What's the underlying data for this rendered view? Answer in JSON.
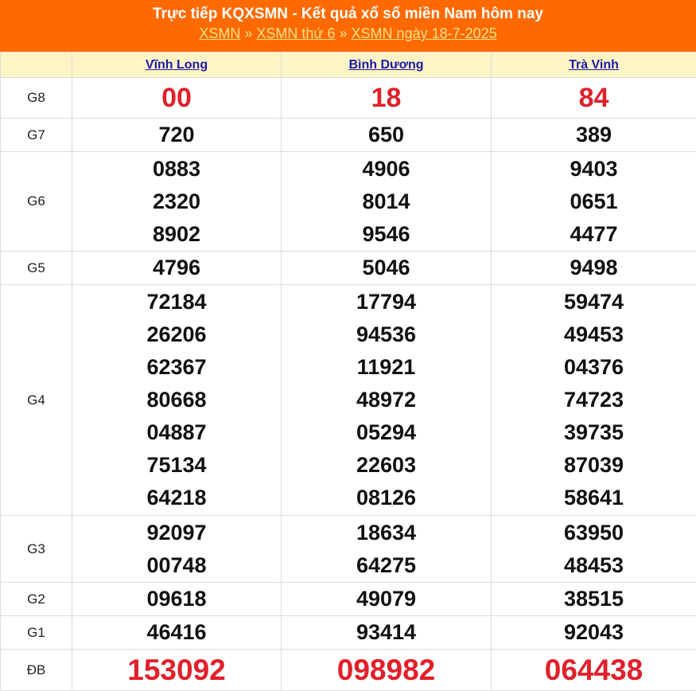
{
  "header": {
    "title": "Trực tiếp KQXSMN - Kết quả xổ số miền Nam hôm nay",
    "breadcrumb": [
      "XSMN",
      "XSMN thứ 6",
      "XSMN ngày 18-7-2025"
    ],
    "separator": "»"
  },
  "provinces": [
    "Vĩnh Long",
    "Bình Dương",
    "Trà Vinh"
  ],
  "prizes": [
    {
      "label": "G8",
      "results": [
        [
          "00"
        ],
        [
          "18"
        ],
        [
          "84"
        ]
      ]
    },
    {
      "label": "G7",
      "results": [
        [
          "720"
        ],
        [
          "650"
        ],
        [
          "389"
        ]
      ]
    },
    {
      "label": "G6",
      "results": [
        [
          "0883",
          "2320",
          "8902"
        ],
        [
          "4906",
          "8014",
          "9546"
        ],
        [
          "9403",
          "0651",
          "4477"
        ]
      ]
    },
    {
      "label": "G5",
      "results": [
        [
          "4796"
        ],
        [
          "5046"
        ],
        [
          "9498"
        ]
      ]
    },
    {
      "label": "G4",
      "results": [
        [
          "72184",
          "26206",
          "62367",
          "80668",
          "04887",
          "75134",
          "64218"
        ],
        [
          "17794",
          "94536",
          "11921",
          "48972",
          "05294",
          "22603",
          "08126"
        ],
        [
          "59474",
          "49453",
          "04376",
          "74723",
          "39735",
          "87039",
          "58641"
        ]
      ]
    },
    {
      "label": "G3",
      "results": [
        [
          "92097",
          "00748"
        ],
        [
          "18634",
          "64275"
        ],
        [
          "63950",
          "48453"
        ]
      ]
    },
    {
      "label": "G2",
      "results": [
        [
          "09618"
        ],
        [
          "49079"
        ],
        [
          "38515"
        ]
      ]
    },
    {
      "label": "G1",
      "results": [
        [
          "46416"
        ],
        [
          "93414"
        ],
        [
          "92043"
        ]
      ]
    },
    {
      "label": "ĐB",
      "results": [
        [
          "153092"
        ],
        [
          "098982"
        ],
        [
          "064438"
        ]
      ]
    }
  ],
  "colors": {
    "header_bg": "#ff6a00",
    "highlight_red": "#e0202a",
    "column_header_bg": "#fff4c6"
  }
}
